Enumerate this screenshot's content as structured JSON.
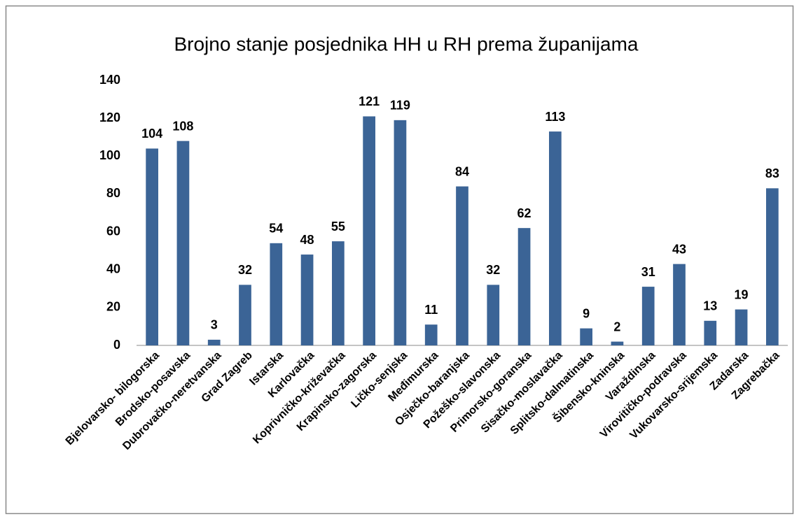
{
  "chart_data": {
    "type": "bar",
    "title": "Brojno stanje posjednika HH u RH prema županijama",
    "categories": [
      "Bjelovarsko- bilogorska",
      "Brodsko-posavska",
      "Dubrovačko-neretvanska",
      "Grad Zagreb",
      "Istarska",
      "Karlovačka",
      "Koprivničko-križevačka",
      "Krapinsko-zagorska",
      "Ličko-senjska",
      "Međimurska",
      "Osječko-baranjska",
      "Požeško-slavonska",
      "Primorsko-goranska",
      "Sisačko-moslavačka",
      "Splitsko-dalmatinska",
      "Šibensko-kninska",
      "Varaždinska",
      "Virovitičko-podravska",
      "Vukovarsko-srijemska",
      "Zadarska",
      "Zagrebačka"
    ],
    "values": [
      104,
      108,
      3,
      32,
      54,
      48,
      55,
      121,
      119,
      11,
      84,
      32,
      62,
      113,
      9,
      2,
      31,
      43,
      13,
      19,
      83
    ],
    "color": "#3b6496",
    "ylim": [
      0,
      140
    ],
    "yticks": [
      0,
      20,
      40,
      60,
      80,
      100,
      120,
      140
    ],
    "grid": false
  }
}
